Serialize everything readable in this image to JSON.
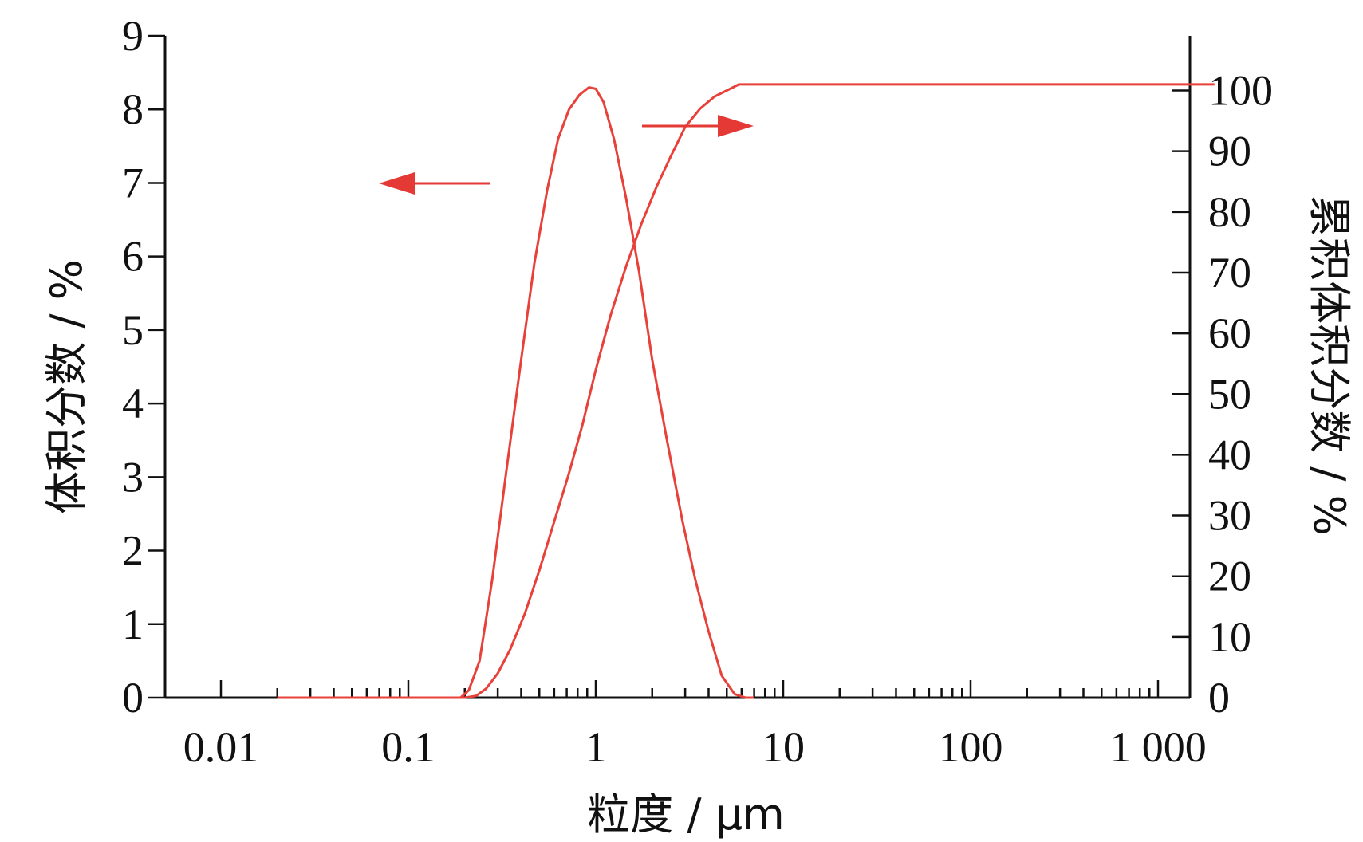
{
  "chart_data": {
    "type": "line",
    "xlabel": "粒度 / μm",
    "ylabel": "体积分数 / %",
    "y2label": "累积体积分数 / %",
    "xscale": "log",
    "xlim": [
      0.01,
      3000
    ],
    "ylim": [
      0,
      9
    ],
    "y2lim": [
      0,
      109
    ],
    "x_ticks": [
      0.01,
      0.1,
      1,
      10,
      100,
      1000
    ],
    "x_tick_labels": [
      "0.01",
      "0.1",
      "1",
      "10",
      "100",
      "1 000"
    ],
    "y_ticks": [
      0,
      1,
      2,
      3,
      4,
      5,
      6,
      7,
      8,
      9
    ],
    "y_tick_labels": [
      "0",
      "1",
      "2",
      "3",
      "4",
      "5",
      "6",
      "7",
      "8",
      "9"
    ],
    "y2_ticks": [
      0,
      10,
      20,
      30,
      40,
      50,
      60,
      70,
      80,
      90,
      100
    ],
    "y2_tick_labels": [
      "0",
      "10",
      "20",
      "30",
      "40",
      "50",
      "60",
      "70",
      "80",
      "90",
      "100"
    ],
    "line_color": "#e8413a",
    "grid": false,
    "series": [
      {
        "axis": "left",
        "x": [
          0.02,
          0.05,
          0.1,
          0.16,
          0.19,
          0.21,
          0.24,
          0.28,
          0.33,
          0.4,
          0.47,
          0.55,
          0.63,
          0.72,
          0.82,
          0.92,
          1.0,
          1.1,
          1.25,
          1.45,
          1.7,
          2.0,
          2.4,
          2.9,
          3.4,
          4.0,
          4.7,
          5.5,
          6.3,
          7.0
        ],
        "values": [
          0,
          0,
          0,
          0,
          0,
          0.1,
          0.5,
          1.6,
          3.0,
          4.6,
          5.9,
          6.9,
          7.6,
          8.0,
          8.2,
          8.3,
          8.28,
          8.1,
          7.6,
          6.8,
          5.8,
          4.6,
          3.5,
          2.4,
          1.6,
          0.9,
          0.3,
          0.05,
          0,
          0
        ]
      },
      {
        "axis": "right",
        "x": [
          0.02,
          0.05,
          0.1,
          0.15,
          0.2,
          0.23,
          0.26,
          0.3,
          0.35,
          0.42,
          0.5,
          0.6,
          0.72,
          0.85,
          1.0,
          1.2,
          1.45,
          1.75,
          2.1,
          2.5,
          3.0,
          3.6,
          4.3,
          5.0,
          5.8,
          7.0,
          10,
          100,
          1000,
          2000
        ],
        "values": [
          0,
          0,
          0,
          0,
          0,
          0.3,
          1.5,
          4,
          8,
          14,
          21,
          29,
          37,
          45,
          54,
          63,
          71,
          78,
          84,
          89,
          94,
          97,
          99,
          100,
          101,
          101,
          101,
          101,
          101,
          101
        ]
      }
    ],
    "annotations": [
      {
        "type": "arrow",
        "direction": "left",
        "series_axis": "left",
        "color": "#e53935"
      },
      {
        "type": "arrow",
        "direction": "right",
        "series_axis": "right",
        "color": "#e53935"
      }
    ]
  }
}
